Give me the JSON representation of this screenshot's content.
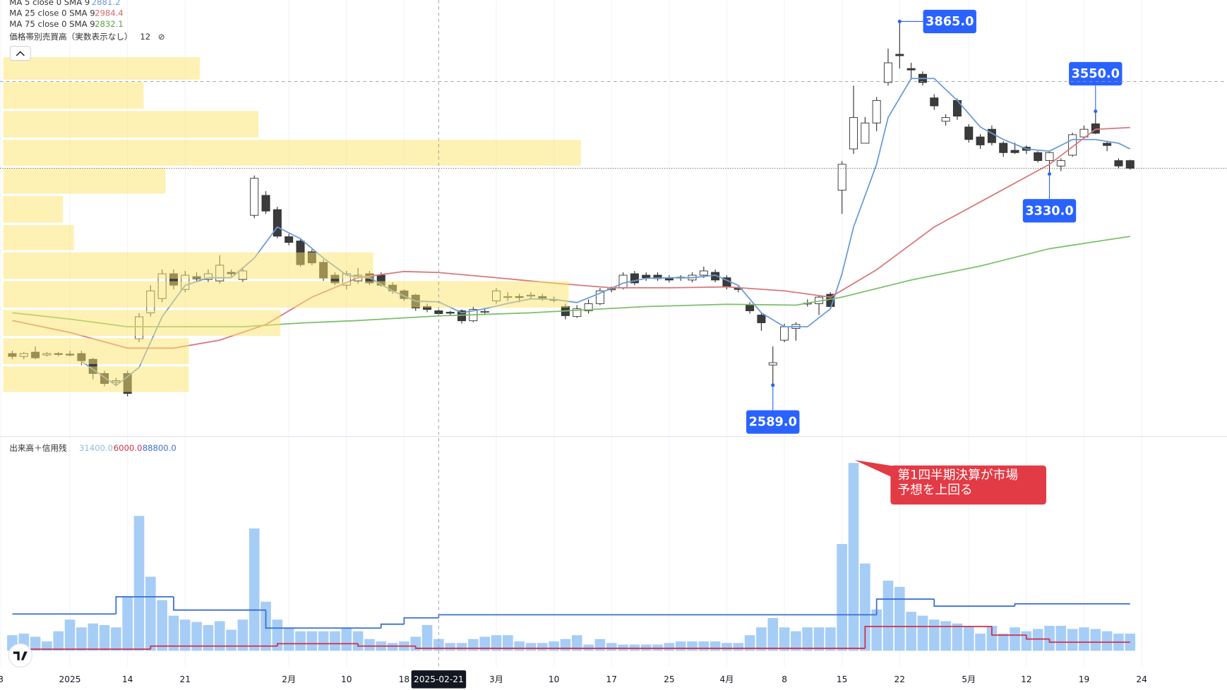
{
  "chart_data": [
    {
      "type": "candlestick",
      "xlim": [
        -1,
        105
      ],
      "ylim": [
        2420,
        3940
      ],
      "open": [
        2700,
        2690,
        2705,
        2695,
        2700,
        2698,
        2700,
        2680,
        2630,
        2600,
        2630,
        2752,
        2843,
        2893,
        2980,
        2925,
        2970,
        2960,
        2955,
        2985,
        2960,
        3185,
        3255,
        3205,
        3110,
        3095,
        3057,
        3020,
        2975,
        2940,
        2955,
        2980,
        2975,
        2940,
        2920,
        2905,
        2865,
        2850,
        2845,
        2850,
        2815,
        2845,
        2885,
        2898,
        2900,
        2903,
        2900,
        2890,
        2865,
        2830,
        2850,
        2875,
        2925,
        2930,
        2980,
        2975,
        2975,
        2966,
        2965,
        2958,
        2975,
        2985,
        2966,
        2930,
        2870,
        2835,
        2660,
        2747,
        2788,
        2875,
        2875,
        2908,
        3273,
        3418,
        3438,
        3509,
        3651,
        3750,
        3700,
        3680,
        3597,
        3515,
        3588,
        3495,
        3460,
        3487,
        3438,
        3413,
        3424,
        3405,
        3377,
        3358,
        3396,
        3460,
        3506,
        3438,
        3377,
        3377
      ],
      "high": [
        2710,
        2705,
        2725,
        2705,
        2705,
        2710,
        2710,
        2685,
        2640,
        2615,
        2640,
        2842,
        2940,
        2995,
        2995,
        2990,
        2985,
        2995,
        3045,
        2995,
        3000,
        3325,
        3270,
        3215,
        3120,
        3105,
        3065,
        3030,
        2985,
        2990,
        3000,
        2990,
        2985,
        2950,
        2925,
        2910,
        2875,
        2855,
        2850,
        2855,
        2865,
        2860,
        2930,
        2915,
        2910,
        2915,
        2910,
        2900,
        2875,
        2870,
        2890,
        2930,
        2935,
        2985,
        2990,
        2985,
        2985,
        2975,
        2975,
        2985,
        3005,
        2995,
        2975,
        2935,
        2880,
        2845,
        2725,
        2805,
        2810,
        2890,
        2905,
        2915,
        3375,
        3640,
        3530,
        3600,
        3770,
        3865,
        3720,
        3690,
        3610,
        3540,
        3595,
        3505,
        3470,
        3500,
        3445,
        3440,
        3430,
        3410,
        3410,
        3385,
        3475,
        3500,
        3550,
        3445,
        3385,
        3380
      ],
      "low": [
        2680,
        2680,
        2680,
        2690,
        2690,
        2690,
        2660,
        2610,
        2585,
        2585,
        2550,
        2740,
        2830,
        2880,
        2925,
        2915,
        2955,
        2950,
        2945,
        2970,
        2950,
        3175,
        3190,
        3105,
        3080,
        3005,
        3010,
        2955,
        2940,
        2925,
        2945,
        2940,
        2935,
        2910,
        2885,
        2850,
        2845,
        2830,
        2835,
        2805,
        2810,
        2835,
        2875,
        2885,
        2880,
        2890,
        2885,
        2880,
        2820,
        2825,
        2840,
        2870,
        2915,
        2925,
        2940,
        2955,
        2955,
        2950,
        2955,
        2950,
        2965,
        2950,
        2925,
        2915,
        2840,
        2780,
        2589,
        2740,
        2745,
        2865,
        2835,
        2855,
        3190,
        3400,
        3440,
        3480,
        3640,
        3700,
        3660,
        3640,
        3555,
        3500,
        3520,
        3440,
        3418,
        3430,
        3390,
        3400,
        3400,
        3370,
        3330,
        3340,
        3390,
        3455,
        3470,
        3410,
        3350,
        3345
      ],
      "close": [
        2690,
        2700,
        2685,
        2700,
        2698,
        2695,
        2675,
        2630,
        2595,
        2605,
        2560,
        2829,
        2920,
        2980,
        2940,
        2975,
        2962,
        2980,
        3010,
        2980,
        2990,
        3315,
        3200,
        3112,
        3090,
        3012,
        3018,
        2965,
        2948,
        2980,
        2975,
        2948,
        2940,
        2920,
        2893,
        2860,
        2855,
        2840,
        2843,
        2815,
        2855,
        2848,
        2920,
        2900,
        2897,
        2905,
        2895,
        2888,
        2833,
        2857,
        2875,
        2920,
        2927,
        2975,
        2948,
        2966,
        2963,
        2958,
        2968,
        2975,
        2990,
        2958,
        2936,
        2925,
        2850,
        2808,
        2668,
        2794,
        2802,
        2877,
        2898,
        2865,
        3364,
        3528,
        3509,
        3588,
        3720,
        3745,
        3695,
        3651,
        3569,
        3528,
        3533,
        3451,
        3432,
        3440,
        3405,
        3405,
        3413,
        3377,
        3405,
        3377,
        3468,
        3487,
        3473,
        3430,
        3358,
        3350
      ],
      "series": [
        {
          "name": "MA 5 close 0 SMA 9",
          "color": "#6a9bd8",
          "crosshair_value": 2881.2,
          "x": [
            6,
            9,
            11,
            13,
            15,
            17,
            19,
            21,
            23,
            25,
            27,
            29,
            31,
            33,
            35,
            37,
            39,
            41,
            43,
            45,
            47,
            49,
            51,
            53,
            55,
            57,
            59,
            61,
            63,
            65,
            67,
            69,
            71,
            72,
            73,
            75,
            76,
            78,
            80,
            82,
            84,
            86,
            88,
            90,
            92,
            94,
            96,
            97
          ],
          "values": [
            2673,
            2588,
            2651,
            2829,
            2939,
            2966,
            2966,
            3035,
            3144,
            3103,
            3035,
            2975,
            2966,
            2920,
            2884,
            2881.2,
            2843,
            2857,
            2876,
            2892,
            2890,
            2879,
            2912,
            2947,
            2964,
            2966,
            2966,
            2975,
            2939,
            2843,
            2794,
            2794,
            2857,
            2980,
            3144,
            3364,
            3528,
            3665,
            3665,
            3588,
            3495,
            3451,
            3418,
            3410,
            3451,
            3451,
            3438,
            3418
          ]
        },
        {
          "name": "MA 25 close 0 SMA 9",
          "color": "#d9787c",
          "crosshair_value": 2984.4,
          "x": [
            0,
            5,
            10,
            14,
            18,
            22,
            26,
            30,
            34,
            37,
            42,
            47,
            52,
            57,
            62,
            67,
            71,
            75,
            80,
            85,
            90,
            94,
            97
          ],
          "values": [
            2816,
            2774,
            2719,
            2719,
            2747,
            2802,
            2898,
            2966,
            2988,
            2984.4,
            2966,
            2947,
            2931,
            2931,
            2934,
            2920,
            2898,
            2994,
            3144,
            3254,
            3364,
            3487,
            3493
          ]
        },
        {
          "name": "MA 75 close 0 SMA 9",
          "color": "#7cbf6a",
          "crosshair_value": 2832.1,
          "x": [
            0,
            5,
            10,
            15,
            20,
            25,
            30,
            37,
            45,
            55,
            62,
            68,
            72,
            78,
            84,
            90,
            97
          ],
          "values": [
            2843,
            2821,
            2794,
            2794,
            2794,
            2807,
            2816,
            2832.1,
            2843,
            2865,
            2873,
            2870,
            2898,
            2958,
            3007,
            3068,
            3111
          ]
        }
      ],
      "volume_profile": {
        "name": "価格帯別売買高（実数表示なし）",
        "rows": 12,
        "icon": "⊘",
        "color": "#fbe46a",
        "xlim": [
          0,
          1000
        ],
        "bins": [
          2561,
          2659,
          2758,
          2857,
          2958,
          3059,
          3155,
          3257,
          3355,
          3454,
          3555,
          3657,
          3744
        ],
        "values": [
          152,
          152,
          227,
          463,
          303,
          58,
          49,
          133,
          473,
          209,
          115,
          161
        ]
      },
      "annotations": [
        {
          "x": 77,
          "value": 3865,
          "label": "3865.0"
        },
        {
          "x": 94,
          "value": 3550,
          "label": "3550.0"
        },
        {
          "x": 90,
          "value": 3330,
          "label": "3330.0"
        },
        {
          "x": 66,
          "value": 2589,
          "label": "2589.0"
        }
      ],
      "crosshair": {
        "x": 37,
        "label": "2025-02-21"
      },
      "callout": [
        "第1四半期決算が市場",
        "予想を上回る"
      ]
    },
    {
      "type": "bar",
      "title": "出来高＋信用残",
      "color": "#a6cdf6",
      "crosshair_value": {
        "value": 31400,
        "label": "31400.0"
      },
      "xlim": [
        -1,
        105
      ],
      "ylim": [
        0,
        560000
      ],
      "y2lim": [
        0,
        515000
      ],
      "xticks": [
        {
          "value": -1,
          "label": "3"
        },
        {
          "value": 5,
          "label": "2025"
        },
        {
          "value": 10,
          "label": "14"
        },
        {
          "value": 15,
          "label": "21"
        },
        {
          "value": 24,
          "label": "2月"
        },
        {
          "value": 29,
          "label": "10"
        },
        {
          "value": 34,
          "label": "18"
        },
        {
          "value": 42,
          "label": "3月"
        },
        {
          "value": 47,
          "label": "10"
        },
        {
          "value": 52,
          "label": "17"
        },
        {
          "value": 57,
          "label": "25"
        },
        {
          "value": 62,
          "label": "4月"
        },
        {
          "value": 67,
          "label": "8"
        },
        {
          "value": 72,
          "label": "15"
        },
        {
          "value": 77,
          "label": "22"
        },
        {
          "value": 83,
          "label": "5月"
        },
        {
          "value": 88,
          "label": "12"
        },
        {
          "value": 93,
          "label": "19"
        },
        {
          "value": 98,
          "label": "24"
        }
      ],
      "values": [
        41800,
        46000,
        37600,
        25100,
        52300,
        83600,
        62700,
        73200,
        69000,
        62700,
        146300,
        361600,
        198600,
        135900,
        94100,
        83600,
        77300,
        69000,
        79400,
        56400,
        83600,
        328100,
        131700,
        83600,
        62700,
        52300,
        52300,
        52300,
        52300,
        62700,
        52300,
        31400,
        25100,
        20900,
        25100,
        37600,
        69000,
        31400,
        20900,
        20900,
        31400,
        37600,
        41800,
        41800,
        25100,
        20900,
        20900,
        25100,
        31400,
        41800,
        16700,
        31400,
        20900,
        16700,
        16700,
        16700,
        16700,
        20900,
        25100,
        25100,
        25100,
        25100,
        20900,
        20900,
        41800,
        62700,
        87800,
        62700,
        52300,
        62700,
        62700,
        62700,
        286300,
        503700,
        234100,
        110800,
        188100,
        171400,
        104500,
        94100,
        83600,
        79400,
        73200,
        66900,
        46000,
        66900,
        46000,
        62700,
        52300,
        58500,
        66900,
        66900,
        58500,
        62700,
        58500,
        52300,
        46000,
        46000
      ],
      "series": [
        {
          "axis": "y2",
          "color": "#d0304a",
          "crosshair_value": {
            "value": 6000,
            "label": "6000.0"
          },
          "x": [
            0,
            12,
            23,
            30,
            35,
            74,
            85,
            88,
            90,
            97
          ],
          "values": [
            3900,
            11600,
            17400,
            11600,
            6000,
            59800,
            38600,
            29000,
            21200,
            21200
          ]
        },
        {
          "axis": "y2",
          "color": "#3a6fd0",
          "crosshair_value": {
            "value": 88800,
            "label": "88800.0"
          },
          "x": [
            0,
            9,
            14,
            22,
            32,
            34,
            37,
            75,
            80,
            87,
            97
          ],
          "values": [
            90700,
            133200,
            100400,
            56000,
            65600,
            81100,
            88800,
            127400,
            110000,
            115800,
            115800
          ]
        }
      ]
    }
  ]
}
